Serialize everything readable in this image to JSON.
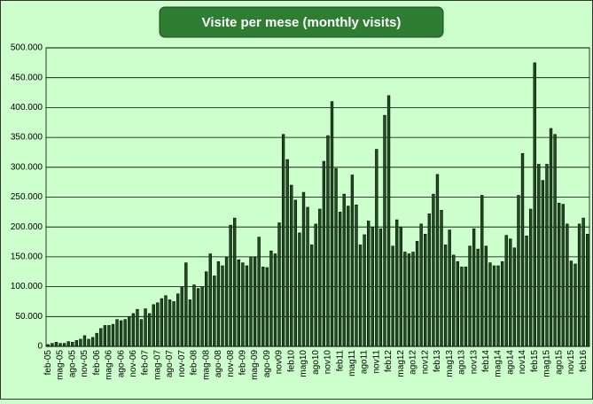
{
  "chart_data": {
    "type": "bar",
    "title": "Visite per mese (monthly visits)",
    "categories": [
      "feb-05",
      null,
      null,
      "mag-05",
      null,
      null,
      "ago-05",
      null,
      null,
      "nov-05",
      null,
      null,
      "feb-06",
      null,
      null,
      "mag-06",
      null,
      null,
      "ago-06",
      null,
      null,
      "nov-06",
      null,
      null,
      "feb-07",
      null,
      null,
      "mag-07",
      null,
      null,
      "ago-07",
      null,
      null,
      "nov-07",
      null,
      null,
      "feb-08",
      null,
      null,
      "mag-08",
      null,
      null,
      "ago-08",
      null,
      null,
      "nov-08",
      null,
      null,
      "feb-09",
      null,
      null,
      "mag-09",
      null,
      null,
      "ago-09",
      null,
      null,
      "nov09",
      null,
      null,
      "feb10",
      null,
      null,
      "mag10",
      null,
      null,
      "ago10",
      null,
      null,
      "nov10",
      null,
      null,
      "feb11",
      null,
      null,
      "mag11",
      null,
      null,
      "ago11",
      null,
      null,
      "nov11",
      null,
      null,
      "feb12",
      null,
      null,
      "mag12",
      null,
      null,
      "ago12",
      null,
      null,
      "nov12",
      null,
      null,
      "feb13",
      null,
      null,
      "mag13",
      null,
      null,
      "ago13",
      null,
      null,
      "nov13",
      null,
      null,
      "feb14",
      null,
      null,
      "mag14",
      null,
      null,
      "ago14",
      null,
      null,
      "nov14",
      null,
      null,
      "feb15",
      null,
      null,
      "mag15",
      null,
      null,
      "ago15",
      null,
      null,
      "nov15",
      null,
      null,
      "feb16",
      null
    ],
    "values": [
      3000,
      5000,
      7000,
      5000,
      5000,
      8000,
      7000,
      10000,
      12000,
      18000,
      12000,
      15000,
      22000,
      30000,
      35000,
      35000,
      37000,
      45000,
      43000,
      45000,
      50000,
      55000,
      62000,
      45000,
      63000,
      55000,
      70000,
      73000,
      80000,
      85000,
      78000,
      75000,
      88000,
      100000,
      140000,
      78000,
      103000,
      97000,
      100000,
      125000,
      155000,
      118000,
      142000,
      135000,
      150000,
      203000,
      215000,
      145000,
      140000,
      135000,
      150000,
      150000,
      183000,
      133000,
      132000,
      160000,
      155000,
      207000,
      355000,
      313000,
      270000,
      245000,
      190000,
      258000,
      233000,
      170000,
      205000,
      230000,
      310000,
      353000,
      410000,
      298000,
      225000,
      255000,
      235000,
      287000,
      237000,
      170000,
      187000,
      210000,
      200000,
      330000,
      197000,
      387000,
      420000,
      168000,
      212000,
      200000,
      158000,
      155000,
      158000,
      176000,
      205000,
      188000,
      222000,
      255000,
      288000,
      228000,
      170000,
      195000,
      153000,
      142000,
      133000,
      133000,
      168000,
      197000,
      163000,
      253000,
      168000,
      140000,
      135000,
      135000,
      142000,
      186000,
      180000,
      165000,
      253000,
      323000,
      185000,
      230000,
      475000,
      305000,
      278000,
      305000,
      365000,
      355000,
      240000,
      238000,
      205000,
      143000,
      138000,
      205000,
      215000,
      188000
    ],
    "color": "#1f4f1f",
    "ylim": [
      0,
      500000
    ],
    "yticks": [
      0,
      {
        "value": 50000,
        "label": "50.000"
      },
      {
        "value": 100000,
        "label": "100.000"
      },
      {
        "value": 150000,
        "label": "150.000"
      },
      {
        "value": 200000,
        "label": "200.000"
      },
      {
        "value": 250000,
        "label": "250.000"
      },
      {
        "value": 300000,
        "label": "300.000"
      },
      {
        "value": 350000,
        "label": "350.000"
      },
      {
        "value": 400000,
        "label": "400.000"
      },
      {
        "value": 450000,
        "label": "450.000"
      },
      {
        "value": 500000,
        "label": "500.000"
      }
    ],
    "grid": true
  }
}
